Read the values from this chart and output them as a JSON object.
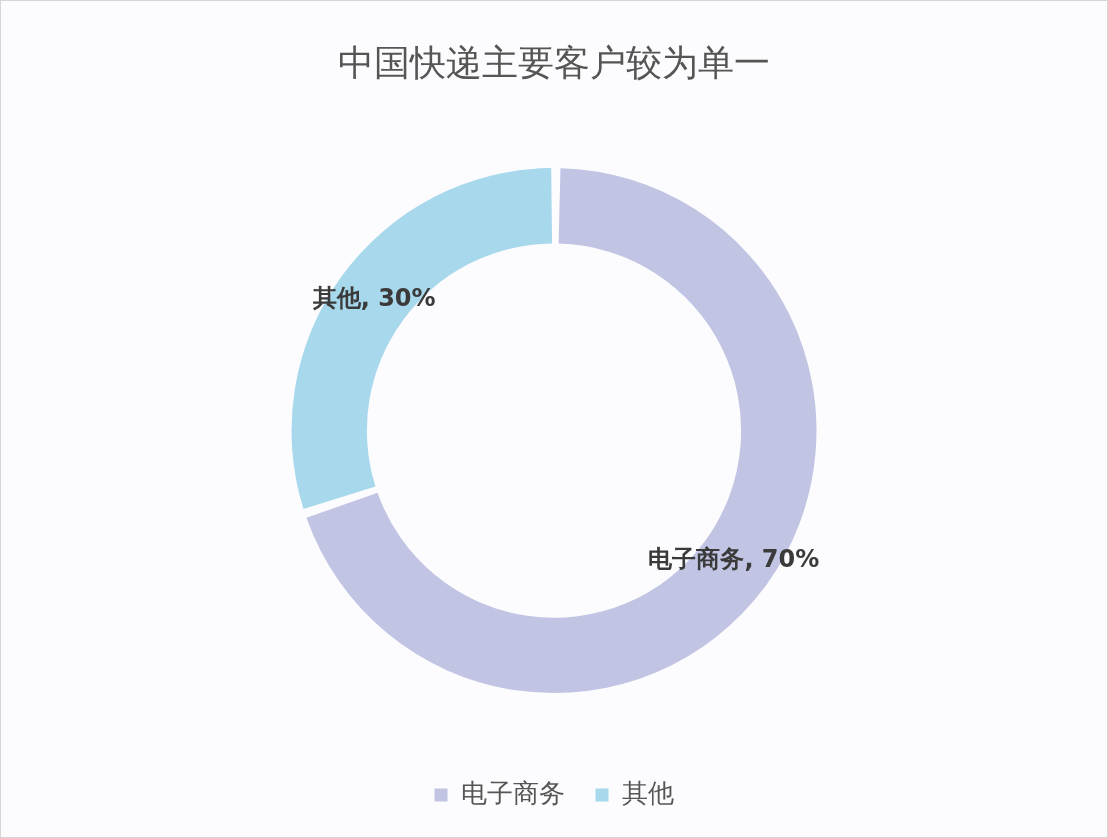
{
  "chart_data": {
    "type": "donut",
    "title": "中国快递主要客户较为单一",
    "categories": [
      "电子商务",
      "其他"
    ],
    "values": [
      70,
      30
    ],
    "colors": [
      "#c1c5e3",
      "#a8d8ec"
    ],
    "value_labels": [
      "电子商务, 70%",
      "其他, 30%"
    ],
    "legend": "bottom"
  }
}
